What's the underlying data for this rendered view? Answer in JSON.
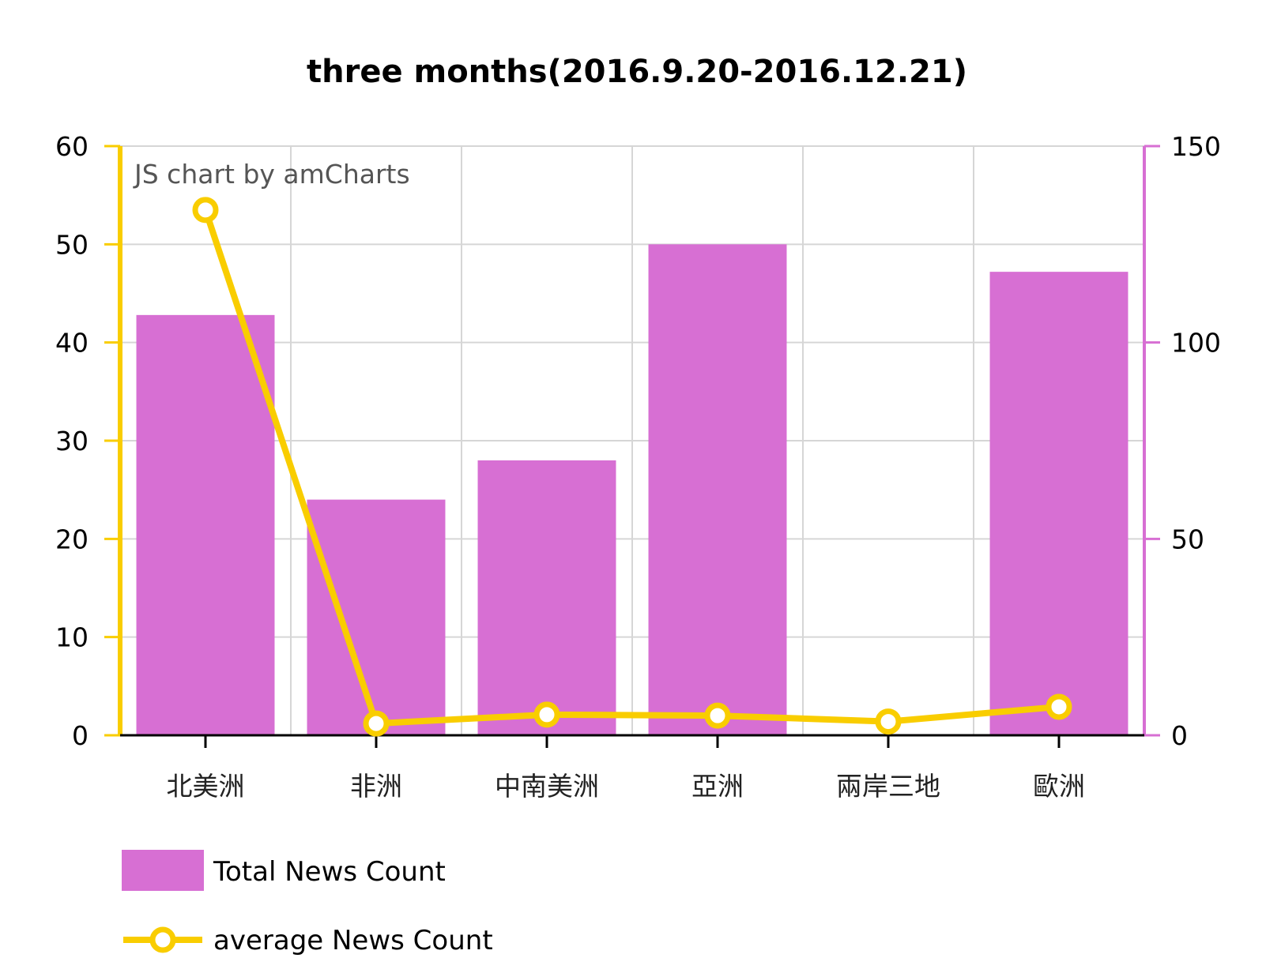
{
  "chart_data": {
    "type": "bar",
    "title": "three months(2016.9.20-2016.12.21)",
    "credit": "JS chart by amCharts",
    "categories": [
      "北美洲",
      "非洲",
      "中南美洲",
      "亞洲",
      "兩岸三地",
      "歐洲"
    ],
    "series": [
      {
        "name": "Total News Count",
        "type": "bar",
        "axis": "right",
        "color": "#d76fd3",
        "values": [
          107,
          60,
          70,
          125,
          0,
          118
        ]
      },
      {
        "name": "average News Count",
        "type": "line",
        "axis": "left",
        "color": "#f9cd00",
        "values": [
          53.5,
          1.2,
          2.1,
          2.0,
          1.4,
          2.9
        ]
      }
    ],
    "left_axis": {
      "min": 0,
      "max": 60,
      "step": 10,
      "ticks": [
        "0",
        "10",
        "20",
        "30",
        "40",
        "50",
        "60"
      ],
      "color": "#f9cd00"
    },
    "right_axis": {
      "min": 0,
      "max": 150,
      "step": 50,
      "ticks": [
        "0",
        "50",
        "100",
        "150"
      ],
      "color": "#d76fd3"
    },
    "grid": true,
    "legend": {
      "position": "bottom-left",
      "items": [
        "Total News Count",
        "average News Count"
      ]
    }
  }
}
